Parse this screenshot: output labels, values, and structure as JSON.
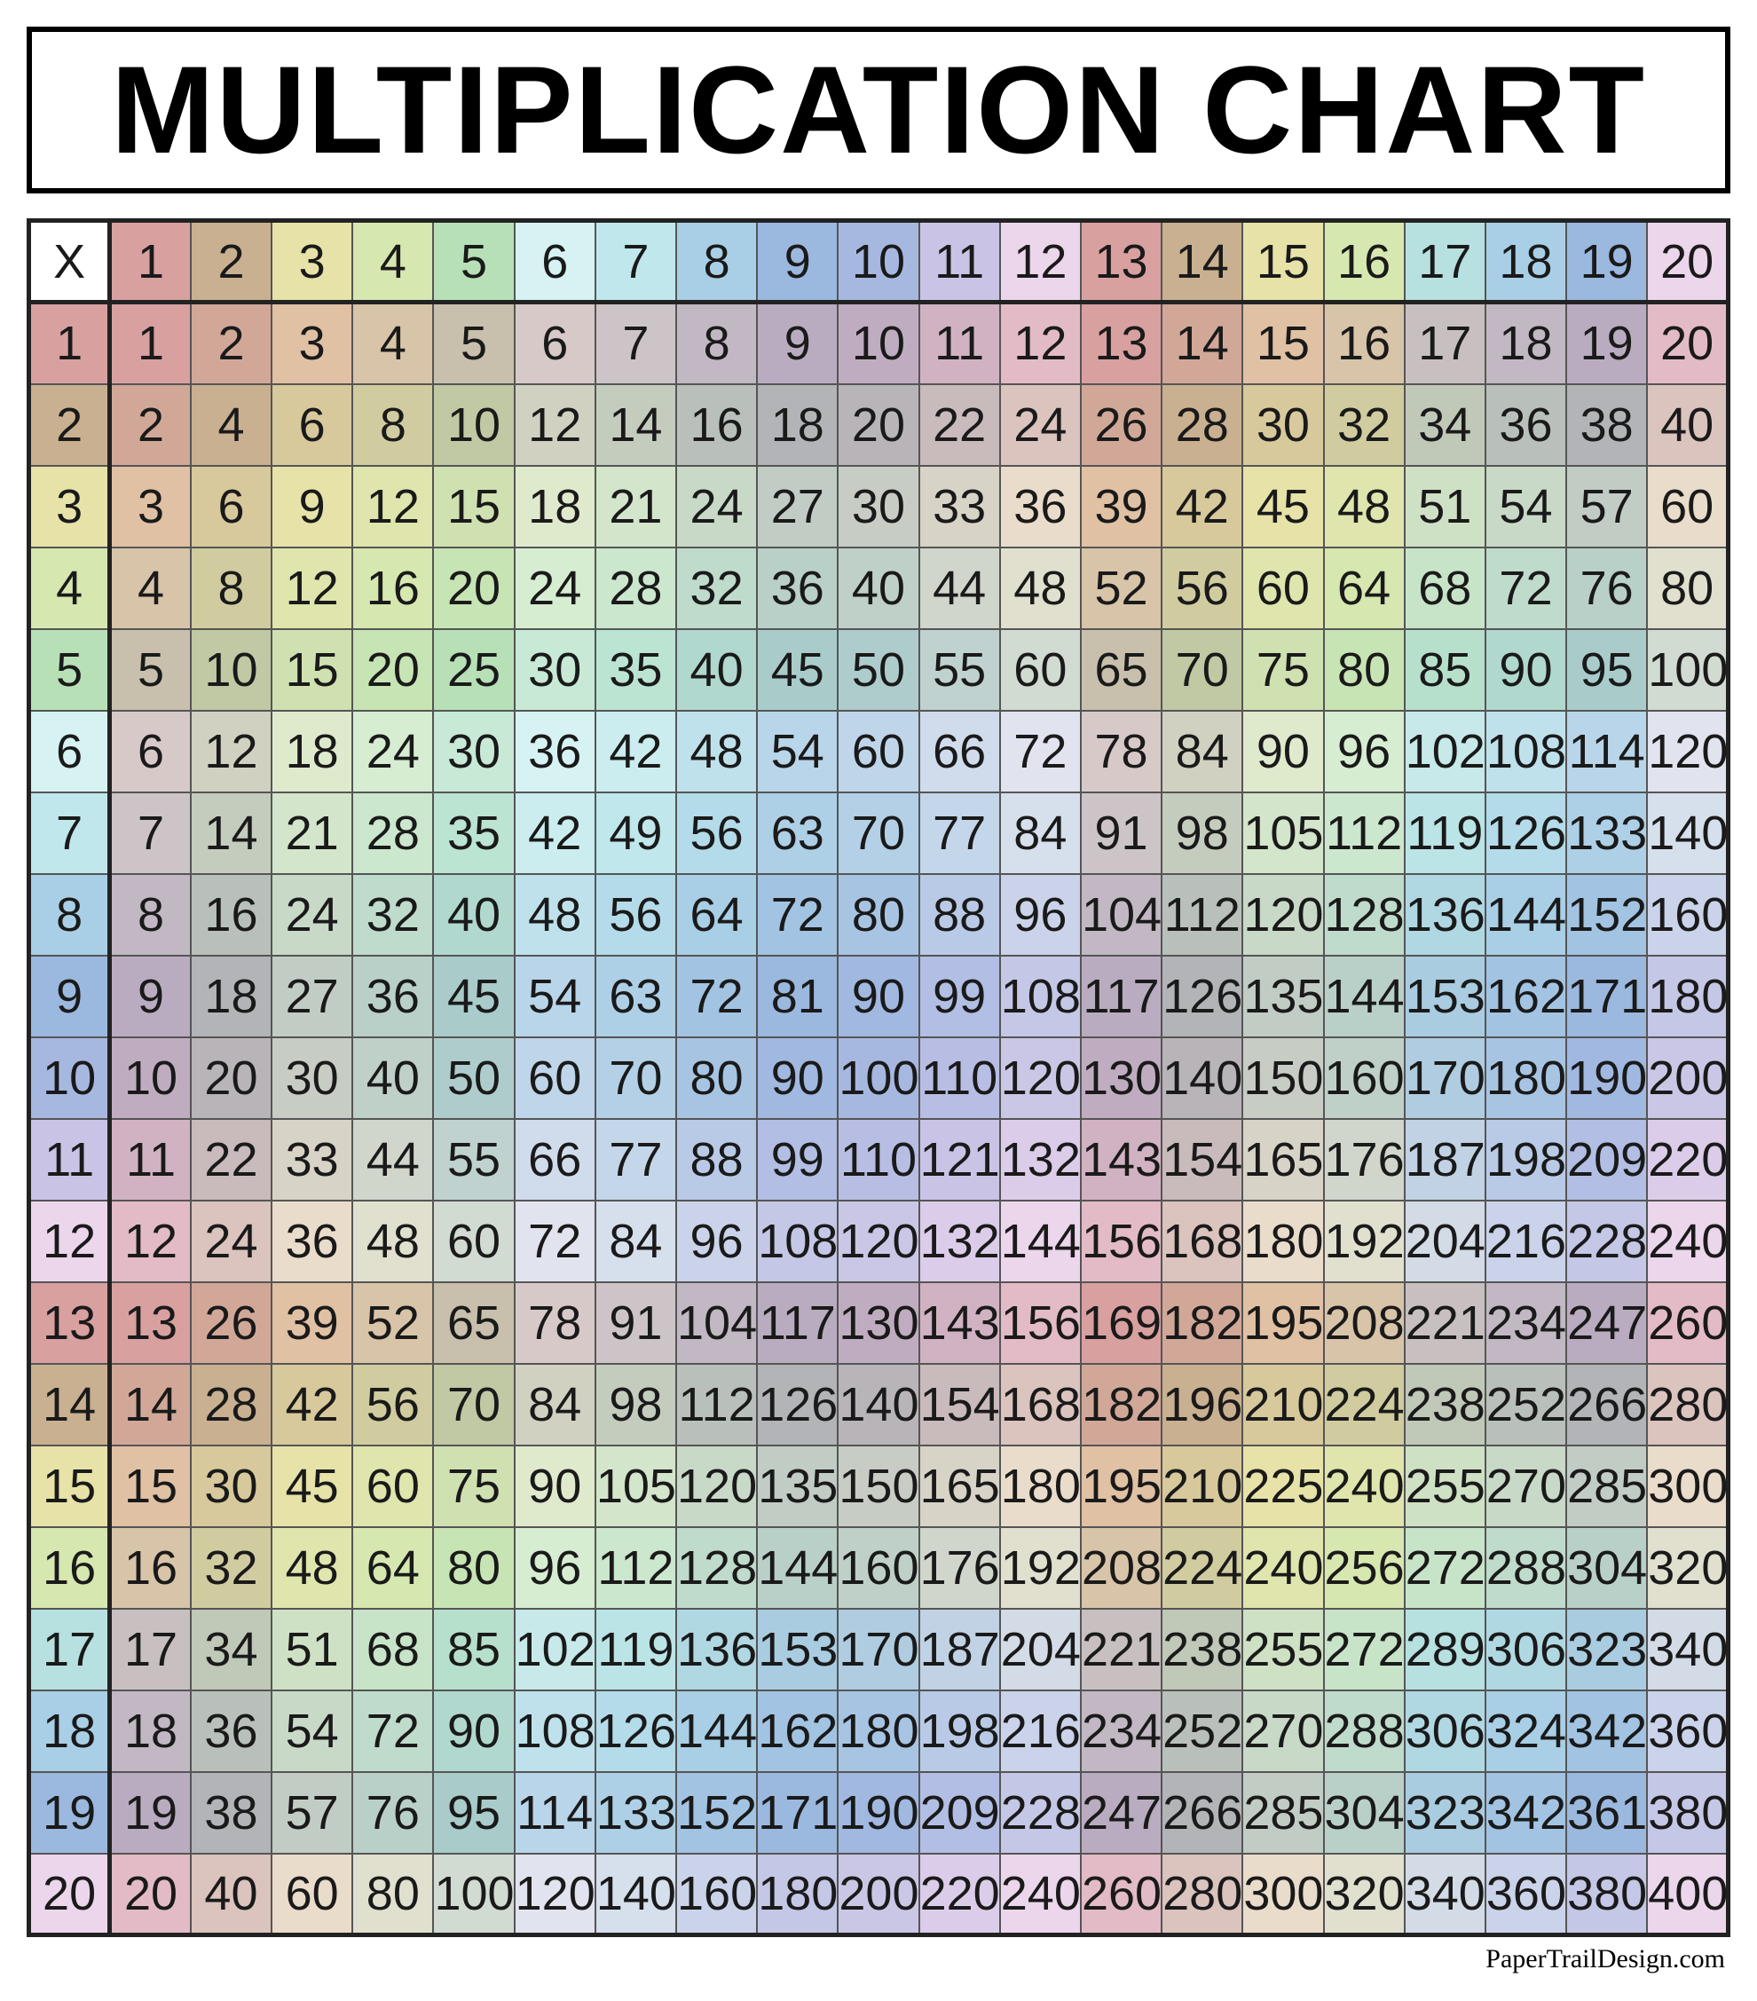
{
  "title": "MULTIPLICATION CHART",
  "credit": "PaperTrailDesign.com",
  "grid": {
    "type": "table",
    "corner_label": "X",
    "size": 20,
    "cell_fontsize_pt": 40,
    "title_fontsize_pt": 105,
    "title_font_weight": 900,
    "border_color": "#555555",
    "outer_border_color": "#222222",
    "text_color": "#1a1a1a",
    "corner_bg": "#ffffff",
    "column_colors": [
      "#d9a0a0",
      "#c9b090",
      "#e7e2a8",
      "#d6e7b0",
      "#b7e0b7",
      "#d6f2f2",
      "#bfe7ec",
      "#a8cfe5",
      "#9bb8df",
      "#a7b8e0",
      "#c9c4e6",
      "#ecd6ec",
      "#d9a0a0",
      "#c9b090",
      "#e7e2a8",
      "#d6e7b0",
      "#b7e0e0",
      "#a8cfe5",
      "#9bb8df",
      "#ecd6ec"
    ]
  }
}
